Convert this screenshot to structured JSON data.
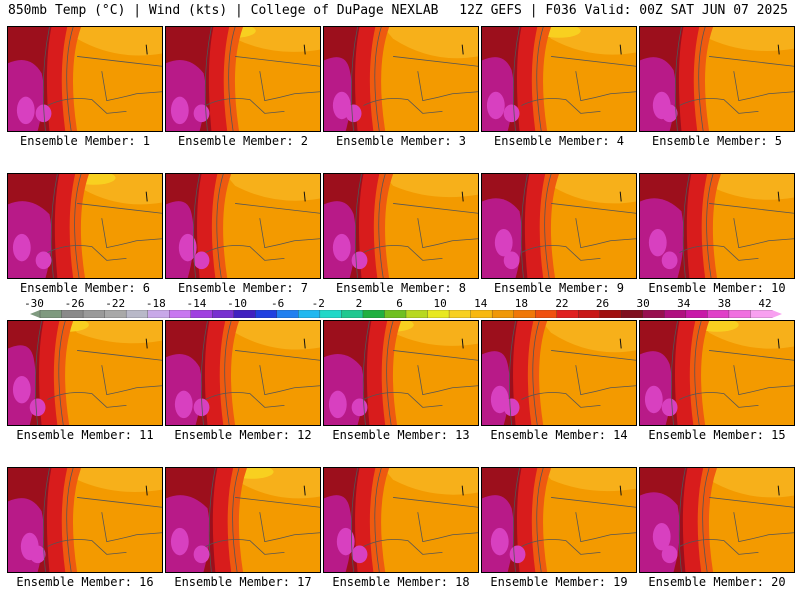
{
  "header": {
    "left": "850mb Temp (°C) | Wind (kts) | College of DuPage NEXLAB",
    "right": "12Z GEFS | F036 Valid: 00Z SAT JUN 07 2025"
  },
  "member_label_prefix": "Ensemble Member: ",
  "members": [
    {
      "id": 1,
      "label": "Ensemble Member: 1"
    },
    {
      "id": 2,
      "label": "Ensemble Member: 2"
    },
    {
      "id": 3,
      "label": "Ensemble Member: 3"
    },
    {
      "id": 4,
      "label": "Ensemble Member: 4"
    },
    {
      "id": 5,
      "label": "Ensemble Member: 5"
    },
    {
      "id": 6,
      "label": "Ensemble Member: 6"
    },
    {
      "id": 7,
      "label": "Ensemble Member: 7"
    },
    {
      "id": 8,
      "label": "Ensemble Member: 8"
    },
    {
      "id": 9,
      "label": "Ensemble Member: 9"
    },
    {
      "id": 10,
      "label": "Ensemble Member: 10"
    },
    {
      "id": 11,
      "label": "Ensemble Member: 11"
    },
    {
      "id": 12,
      "label": "Ensemble Member: 12"
    },
    {
      "id": 13,
      "label": "Ensemble Member: 13"
    },
    {
      "id": 14,
      "label": "Ensemble Member: 14"
    },
    {
      "id": 15,
      "label": "Ensemble Member: 15"
    },
    {
      "id": 16,
      "label": "Ensemble Member: 16"
    },
    {
      "id": 17,
      "label": "Ensemble Member: 17"
    },
    {
      "id": 18,
      "label": "Ensemble Member: 18"
    },
    {
      "id": 19,
      "label": "Ensemble Member: 19"
    },
    {
      "id": 20,
      "label": "Ensemble Member: 20"
    }
  ],
  "colorbar": {
    "ticks": [
      "-30",
      "-26",
      "-22",
      "-18",
      "-14",
      "-10",
      "-6",
      "-2",
      "2",
      "6",
      "10",
      "14",
      "18",
      "22",
      "26",
      "30",
      "34",
      "38",
      "42"
    ],
    "colors": [
      "#7f9a7f",
      "#8a8a8a",
      "#9a9a9a",
      "#a8a8a8",
      "#b8b8c8",
      "#c8a8e8",
      "#c878f0",
      "#a040e0",
      "#7830d0",
      "#4020c0",
      "#2040e0",
      "#2080f0",
      "#20b8f0",
      "#20d8c8",
      "#20c890",
      "#20b040",
      "#70c020",
      "#b8d820",
      "#e8e820",
      "#f8d020",
      "#f8b810",
      "#f09808",
      "#f07808",
      "#f05010",
      "#e02020",
      "#c81818",
      "#a01010",
      "#801020",
      "#981050",
      "#b01080",
      "#c818a8",
      "#e040c8",
      "#f070e0",
      "#f8a0f0"
    ],
    "colors_count_note": ""
  },
  "palette": {
    "orange": "#f39a00",
    "light_orange": "#f7b01a",
    "red_orange": "#ee5a10",
    "red": "#d81c1c",
    "dark_red": "#9c0f1c",
    "magenta": "#b81a88",
    "pink": "#d840c0",
    "yellow": "#f8d020",
    "contour": "#555555"
  }
}
